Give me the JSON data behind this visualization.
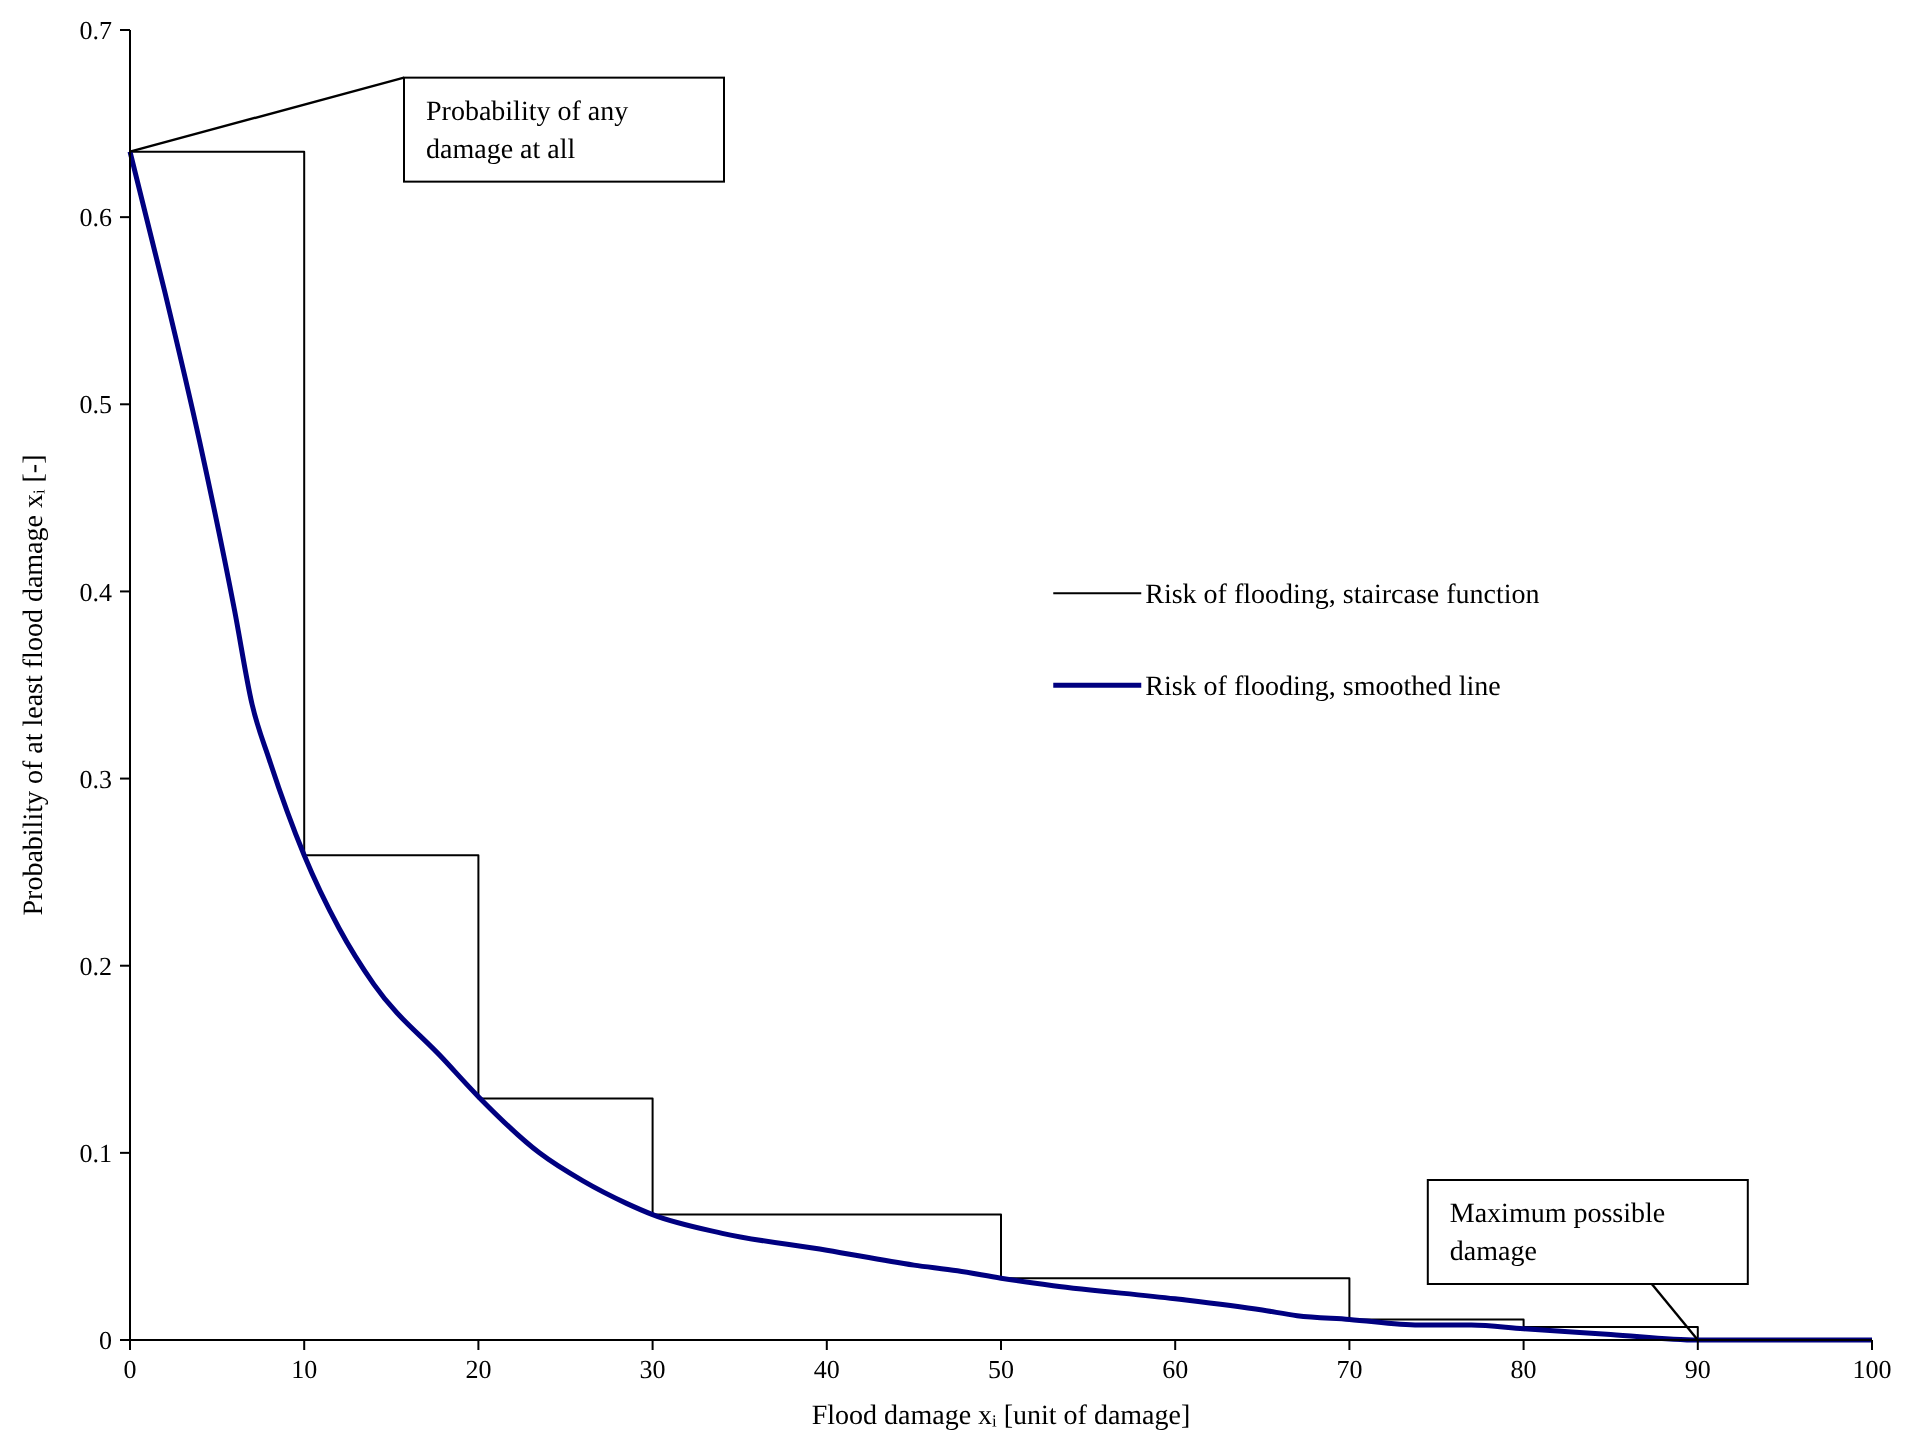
{
  "chart_data": {
    "type": "line",
    "xlabel": "Flood damage xᵢ [unit of damage]",
    "ylabel": "Probability of at least flood damage xᵢ [-]",
    "xlim": [
      0,
      100
    ],
    "xticks": [
      0,
      10,
      20,
      30,
      40,
      50,
      60,
      70,
      80,
      90,
      100
    ],
    "ylim": [
      0,
      0.7
    ],
    "yticks": [
      0,
      0.1,
      0.2,
      0.3,
      0.4,
      0.5,
      0.6,
      0.7
    ],
    "grid": false,
    "legend": "right",
    "marker": "none",
    "series": [
      {
        "name": "Risk of flooding, staircase function",
        "type": "step",
        "color": "#000000",
        "x": [
          0,
          10,
          20,
          30,
          50,
          70,
          80,
          90
        ],
        "values": [
          0.635,
          0.259,
          0.129,
          0.067,
          0.033,
          0.011,
          0.007,
          0
        ]
      },
      {
        "name": "Risk of flooding, smoothed line",
        "type": "line",
        "color": "#000080",
        "x": [
          0,
          2,
          4,
          6,
          7,
          8,
          10,
          12,
          14,
          18,
          20,
          23.5,
          26,
          28.5,
          30,
          34,
          40,
          45,
          47.5,
          50,
          53,
          60,
          65,
          67,
          70,
          74,
          77,
          80,
          85,
          90,
          100
        ],
        "values": [
          0.635,
          0.56,
          0.48,
          0.39,
          0.34,
          0.31,
          0.259,
          0.22,
          0.19,
          0.15,
          0.13,
          0.1,
          0.085,
          0.073,
          0.067,
          0.057,
          0.048,
          0.04,
          0.037,
          0.033,
          0.029,
          0.022,
          0.016,
          0.013,
          0.011,
          0.008,
          0.008,
          0.006,
          0.003,
          0,
          0
        ]
      }
    ],
    "annotations": [
      {
        "text": "Probability of any damage at all",
        "x": 0,
        "y": 0.635
      },
      {
        "text": "Maximum possible damage",
        "x": 90,
        "y": 0
      }
    ]
  }
}
